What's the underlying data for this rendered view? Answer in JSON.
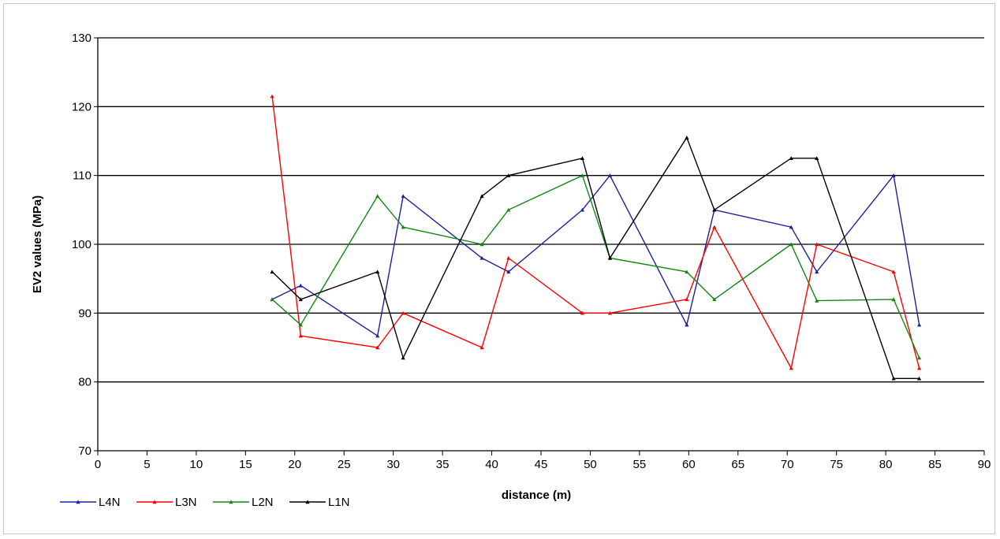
{
  "chart_data": {
    "type": "line",
    "title": "",
    "xlabel": "distance (m)",
    "ylabel": "EV2 values (MPa)",
    "xlim": [
      0,
      90
    ],
    "ylim": [
      70,
      130
    ],
    "xticks": [
      "0",
      "5",
      "10",
      "15",
      "20",
      "25",
      "30",
      "35",
      "40",
      "45",
      "50",
      "55",
      "60",
      "65",
      "70",
      "75",
      "80",
      "85",
      "90"
    ],
    "yticks": [
      "70",
      "80",
      "90",
      "100",
      "110",
      "120",
      "130"
    ],
    "grid": "horizontal",
    "legend_position": "bottom-left",
    "series": [
      {
        "name": "L4N",
        "color": "#1f1f9c",
        "x": [
          17.7,
          20.6,
          28.4,
          31.0,
          39.0,
          41.7,
          49.2,
          52.0,
          59.8,
          62.6,
          70.4,
          73.0,
          80.8,
          83.4
        ],
        "y": [
          92,
          94,
          86.7,
          107,
          98,
          96,
          105,
          110,
          88.3,
          105,
          102.5,
          96,
          110,
          88.3
        ]
      },
      {
        "name": "L3N",
        "color": "#ff0000",
        "x": [
          17.7,
          20.6,
          28.4,
          31.0,
          39.0,
          41.7,
          49.2,
          52.0,
          59.8,
          62.6,
          70.4,
          73.0,
          80.8,
          83.4
        ],
        "y": [
          121.5,
          86.7,
          85,
          90,
          85,
          98,
          90,
          90,
          92,
          102.5,
          82,
          100,
          96,
          82
        ]
      },
      {
        "name": "L2N",
        "color": "#118811",
        "x": [
          17.7,
          20.6,
          28.4,
          31.0,
          39.0,
          41.7,
          49.2,
          52.0,
          59.8,
          62.6,
          70.4,
          73.0,
          80.8,
          83.4
        ],
        "y": [
          92,
          88.3,
          107,
          102.5,
          100,
          105,
          110,
          98,
          96,
          92,
          100,
          91.8,
          92,
          83.5
        ]
      },
      {
        "name": "L1N",
        "color": "#000000",
        "x": [
          17.7,
          20.6,
          28.4,
          31.0,
          39.0,
          41.7,
          49.2,
          52.0,
          59.8,
          62.6,
          70.4,
          73.0,
          80.8,
          83.4
        ],
        "y": [
          96,
          92,
          96,
          83.5,
          107,
          110,
          112.5,
          98,
          115.5,
          105,
          112.5,
          112.5,
          80.5,
          80.5
        ]
      }
    ]
  }
}
